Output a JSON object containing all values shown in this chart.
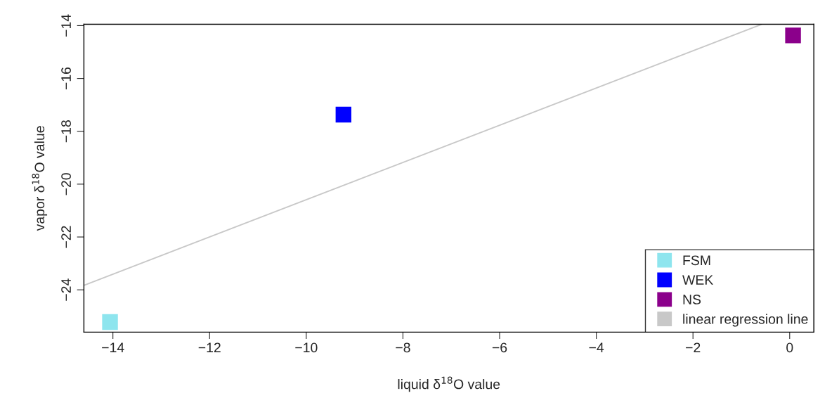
{
  "chart_data": {
    "type": "scatter",
    "xlabel": "liquid δ$^{18}$O value",
    "ylabel": "vapor δ$^{18}$O value",
    "series": [
      {
        "name": "FSM",
        "color": "#8ee5ee",
        "marker": "square",
        "x": [
          -14.06
        ],
        "values": [
          -25.22
        ]
      },
      {
        "name": "WEK",
        "color": "#0000ff",
        "marker": "square",
        "x": [
          -9.23
        ],
        "values": [
          -17.37
        ]
      },
      {
        "name": "NS",
        "color": "#8b008b",
        "marker": "square",
        "x": [
          0.07
        ],
        "values": [
          -14.37
        ]
      },
      {
        "name": "linear regression line",
        "type": "line",
        "color": "#c8c8c8",
        "x": [
          -14.6,
          -0.58
        ],
        "values": [
          -23.83,
          -13.95
        ]
      }
    ],
    "xlim": [
      -14.6,
      0.5
    ],
    "xticks": [
      -14,
      -12,
      -10,
      -8,
      -6,
      -4,
      -2,
      0
    ],
    "ylim": [
      -25.6,
      -13.95
    ],
    "yticks": [
      -24,
      -22,
      -20,
      -18,
      -16,
      -14
    ],
    "grid": false,
    "legend": "bottom right"
  }
}
